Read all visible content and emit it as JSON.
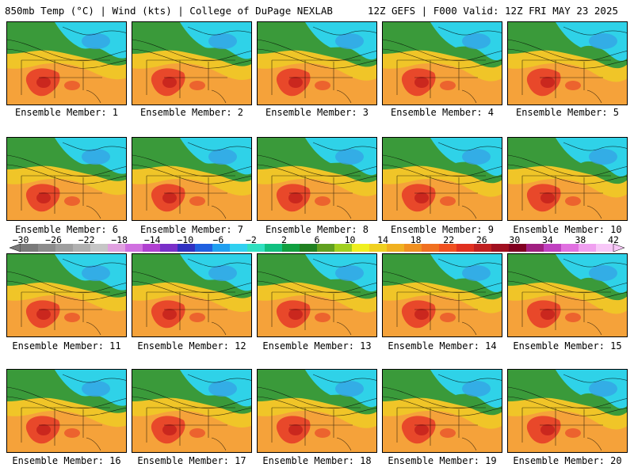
{
  "header": {
    "title": "850mb Temp (°C) | Wind (kts) | College of DuPage NEXLAB",
    "run_info": "12Z GEFS | F000 Valid: 12Z FRI MAY 23 2025"
  },
  "panels": [
    {
      "label": "Ensemble Member: 1"
    },
    {
      "label": "Ensemble Member: 2"
    },
    {
      "label": "Ensemble Member: 3"
    },
    {
      "label": "Ensemble Member: 4"
    },
    {
      "label": "Ensemble Member: 5"
    },
    {
      "label": "Ensemble Member: 6"
    },
    {
      "label": "Ensemble Member: 7"
    },
    {
      "label": "Ensemble Member: 8"
    },
    {
      "label": "Ensemble Member: 9"
    },
    {
      "label": "Ensemble Member: 10"
    },
    {
      "label": "Ensemble Member: 11"
    },
    {
      "label": "Ensemble Member: 12"
    },
    {
      "label": "Ensemble Member: 13"
    },
    {
      "label": "Ensemble Member: 14"
    },
    {
      "label": "Ensemble Member: 15"
    },
    {
      "label": "Ensemble Member: 16"
    },
    {
      "label": "Ensemble Member: 17"
    },
    {
      "label": "Ensemble Member: 18"
    },
    {
      "label": "Ensemble Member: 19"
    },
    {
      "label": "Ensemble Member: 20"
    }
  ],
  "colorbar": {
    "ticks": [
      "−30",
      "−26",
      "−22",
      "−18",
      "−14",
      "−10",
      "−6",
      "−2",
      "2",
      "6",
      "10",
      "14",
      "18",
      "22",
      "26",
      "30",
      "34",
      "38",
      "42"
    ],
    "colors": [
      "#7a7a7a",
      "#8c8c8c",
      "#9e9e9e",
      "#b0b0b0",
      "#c6c6c6",
      "#e0a0e0",
      "#d070e0",
      "#b040d0",
      "#7a30c8",
      "#3030c0",
      "#2060e0",
      "#20a0f0",
      "#30d0f0",
      "#30e0c0",
      "#10c080",
      "#10a040",
      "#208020",
      "#60a020",
      "#a0d020",
      "#f0f020",
      "#f0d020",
      "#f0b020",
      "#f09020",
      "#f07020",
      "#f05020",
      "#e03020",
      "#c02020",
      "#a01020",
      "#800020",
      "#a02080",
      "#c040c0",
      "#e070e0",
      "#f0a0f0",
      "#f8c8f8"
    ]
  },
  "map_colors": {
    "ocean_warm": "#f5a23a",
    "hot": "#e8482a",
    "very_hot": "#c4221c",
    "mild": "#f0c528",
    "cool_green": "#3a9a3a",
    "cold_cyan": "#2fd2e8",
    "colder_blue": "#36a0e6"
  }
}
